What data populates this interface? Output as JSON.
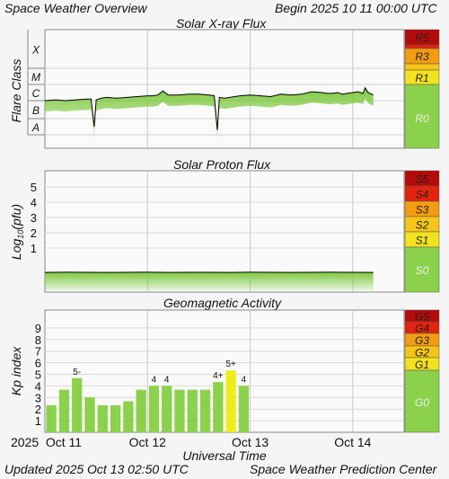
{
  "header": {
    "title": "Space Weather Overview",
    "begin_label": "Begin",
    "begin_time": "2025 10 11 00:00 UTC"
  },
  "footer": {
    "updated_label": "Updated",
    "updated_time": "2025 Oct 13 02:50 UTC",
    "credit": "Space Weather Prediction Center"
  },
  "x_axis": {
    "title": "Universal Time",
    "year": "2025",
    "ticks": [
      "Oct 11",
      "Oct 12",
      "Oct 13",
      "Oct 14"
    ]
  },
  "colors": {
    "line": "#000000",
    "fill_green": "#7dc93e",
    "scale_green": "#8cd14b",
    "scale_yellow": "#f3e21e",
    "scale_orange": "#f39c12",
    "scale_red": "#e3230e",
    "scale_darkred": "#b50a0a",
    "kp_yellow": "#eded1c"
  },
  "chart_data": [
    {
      "type": "line",
      "title": "Solar X-ray Flux",
      "ylabel": "Flare Class",
      "y_categories": [
        "A",
        "B",
        "C",
        "M",
        "X"
      ],
      "x_range_days": [
        0,
        3.5
      ],
      "series_class_position": {
        "x": [
          0.0,
          0.1,
          0.2,
          0.3,
          0.4,
          0.45,
          0.48,
          0.5,
          0.55,
          0.6,
          0.7,
          0.8,
          0.9,
          1.0,
          1.05,
          1.1,
          1.15,
          1.2,
          1.3,
          1.4,
          1.5,
          1.6,
          1.65,
          1.68,
          1.7,
          1.75,
          1.8,
          1.9,
          2.0,
          2.1,
          2.2,
          2.3,
          2.4,
          2.5,
          2.6,
          2.7,
          2.75,
          2.8,
          2.85,
          2.9,
          2.95,
          3.0,
          3.05,
          3.1,
          3.12,
          3.15,
          3.2
        ],
        "y": [
          2.0,
          2.05,
          2.0,
          2.05,
          2.1,
          2.1,
          0.5,
          2.05,
          2.15,
          2.2,
          2.15,
          2.2,
          2.25,
          2.3,
          2.3,
          2.35,
          2.6,
          2.35,
          2.35,
          2.4,
          2.4,
          2.35,
          2.3,
          0.3,
          2.2,
          2.15,
          2.2,
          2.3,
          2.35,
          2.3,
          2.25,
          2.4,
          2.35,
          2.4,
          2.55,
          2.5,
          2.45,
          2.45,
          2.5,
          2.4,
          2.45,
          2.5,
          2.55,
          2.45,
          2.8,
          2.5,
          2.35
        ]
      },
      "scale": [
        {
          "label": "R5",
          "color": "darkred"
        },
        {
          "label": "R3",
          "color": "orange"
        },
        {
          "label": "R1",
          "color": "yellow"
        },
        {
          "label": "R0",
          "color": "green"
        }
      ]
    },
    {
      "type": "line",
      "title": "Solar Proton Flux",
      "ylabel": "Log10(pfu)",
      "ylabel_base": "Log",
      "ylabel_sub": "10",
      "ylabel_unit": "(pfu)",
      "y_ticks": [
        "1",
        "2",
        "3",
        "4",
        "5"
      ],
      "ylim": [
        -1.5,
        6
      ],
      "x_range_days": [
        0,
        3.5
      ],
      "series_log": {
        "x": [
          0.0,
          0.2,
          0.4,
          0.6,
          0.8,
          1.0,
          1.2,
          1.4,
          1.6,
          1.8,
          2.0,
          2.2,
          2.4,
          2.6,
          2.8,
          3.0,
          3.2
        ],
        "y": [
          -0.85,
          -0.87,
          -0.86,
          -0.85,
          -0.86,
          -0.87,
          -0.85,
          -0.86,
          -0.86,
          -0.85,
          -0.87,
          -0.86,
          -0.85,
          -0.86,
          -0.87,
          -0.86,
          -0.85
        ]
      },
      "scale": [
        {
          "label": "S5",
          "color": "darkred"
        },
        {
          "label": "S4",
          "color": "red"
        },
        {
          "label": "S3",
          "color": "orange"
        },
        {
          "label": "S2",
          "color": "scale_yellow"
        },
        {
          "label": "S1",
          "color": "yellow"
        },
        {
          "label": "S0",
          "color": "green"
        }
      ]
    },
    {
      "type": "bar",
      "title": "Geomagnetic Activity",
      "ylabel": "Kp index",
      "y_ticks": [
        "1",
        "2",
        "3",
        "4",
        "5",
        "6",
        "7",
        "8",
        "9"
      ],
      "ylim": [
        0,
        10
      ],
      "x_range_days": [
        0,
        3.5
      ],
      "bar_interval_hours": 3,
      "values": [
        2.33,
        3.67,
        4.67,
        3.0,
        2.33,
        2.33,
        2.67,
        3.67,
        4.0,
        4.0,
        3.67,
        3.67,
        3.67,
        4.33,
        5.33,
        4.0
      ],
      "labels": [
        "",
        "",
        "5-",
        "",
        "",
        "",
        "",
        "",
        "4",
        "4",
        "",
        "",
        "",
        "4+",
        "5+",
        "4"
      ],
      "scale": [
        {
          "label": "G5",
          "color": "darkred"
        },
        {
          "label": "G4",
          "color": "red"
        },
        {
          "label": "G3",
          "color": "orange"
        },
        {
          "label": "G2",
          "color": "scale_yellow"
        },
        {
          "label": "G1",
          "color": "yellow"
        },
        {
          "label": "G0",
          "color": "green"
        }
      ]
    }
  ]
}
